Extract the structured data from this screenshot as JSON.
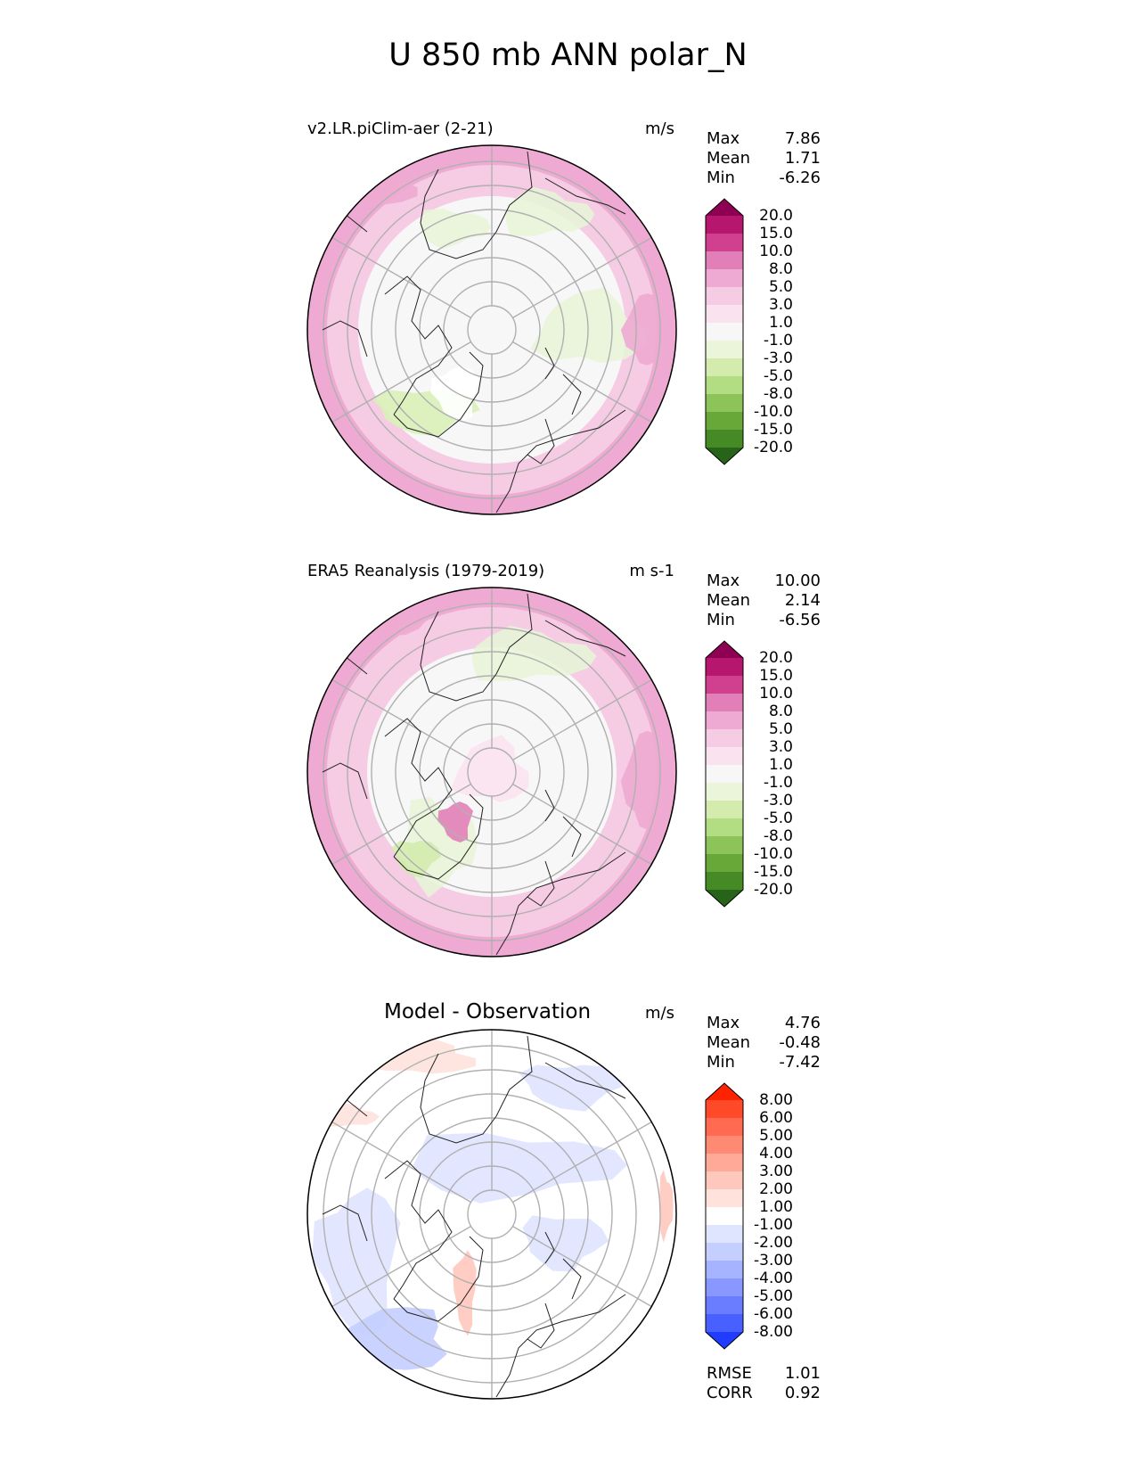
{
  "title": "U 850 mb ANN polar_N",
  "panels": [
    {
      "title": "v2.LR.piClim-aer (2-21)",
      "units": "m/s",
      "stats": [
        {
          "label": "Max",
          "value": "7.86"
        },
        {
          "label": "Mean",
          "value": "1.71"
        },
        {
          "label": "Min",
          "value": "-6.26"
        }
      ],
      "colorbar": {
        "labels": [
          "20.0",
          "15.0",
          "10.0",
          "8.0",
          "5.0",
          "3.0",
          "1.0",
          "-1.0",
          "-3.0",
          "-5.0",
          "-8.0",
          "-10.0",
          "-15.0",
          "-20.0"
        ],
        "colors": [
          "#8e0152",
          "#b7166f",
          "#d0408f",
          "#e27fb8",
          "#eeaad2",
          "#f6cbe4",
          "#fbe2ef",
          "#f7f7f7",
          "#eaf5d9",
          "#d3ecae",
          "#b3dd83",
          "#8dc45a",
          "#67a838",
          "#458a25",
          "#27641a"
        ]
      }
    },
    {
      "title": "ERA5 Reanalysis (1979-2019)",
      "units": "m s-1",
      "stats": [
        {
          "label": "Max",
          "value": "10.00"
        },
        {
          "label": "Mean",
          "value": "2.14"
        },
        {
          "label": "Min",
          "value": "-6.56"
        }
      ],
      "colorbar": {
        "labels": [
          "20.0",
          "15.0",
          "10.0",
          "8.0",
          "5.0",
          "3.0",
          "1.0",
          "-1.0",
          "-3.0",
          "-5.0",
          "-8.0",
          "-10.0",
          "-15.0",
          "-20.0"
        ],
        "colors": [
          "#8e0152",
          "#b7166f",
          "#d0408f",
          "#e27fb8",
          "#eeaad2",
          "#f6cbe4",
          "#fbe2ef",
          "#f7f7f7",
          "#eaf5d9",
          "#d3ecae",
          "#b3dd83",
          "#8dc45a",
          "#67a838",
          "#458a25",
          "#27641a"
        ]
      }
    },
    {
      "title": "Model - Observation",
      "units": "m/s",
      "stats": [
        {
          "label": "Max",
          "value": "4.76"
        },
        {
          "label": "Mean",
          "value": "-0.48"
        },
        {
          "label": "Min",
          "value": "-7.42"
        }
      ],
      "colorbar": {
        "labels": [
          "8.00",
          "6.00",
          "5.00",
          "4.00",
          "3.00",
          "2.00",
          "1.00",
          "-1.00",
          "-2.00",
          "-3.00",
          "-4.00",
          "-5.00",
          "-6.00",
          "-8.00"
        ],
        "colors": [
          "#ff2200",
          "#ff4a2a",
          "#ff6a50",
          "#ff8a74",
          "#ffaa98",
          "#ffc8bc",
          "#ffe2dc",
          "#ffffff",
          "#dfe4ff",
          "#c4ceff",
          "#a6b4ff",
          "#8898ff",
          "#6a7cff",
          "#4860ff",
          "#1f3cff"
        ]
      },
      "metrics": [
        {
          "label": "RMSE",
          "value": "1.01"
        },
        {
          "label": "CORR",
          "value": "0.92"
        }
      ]
    }
  ]
}
